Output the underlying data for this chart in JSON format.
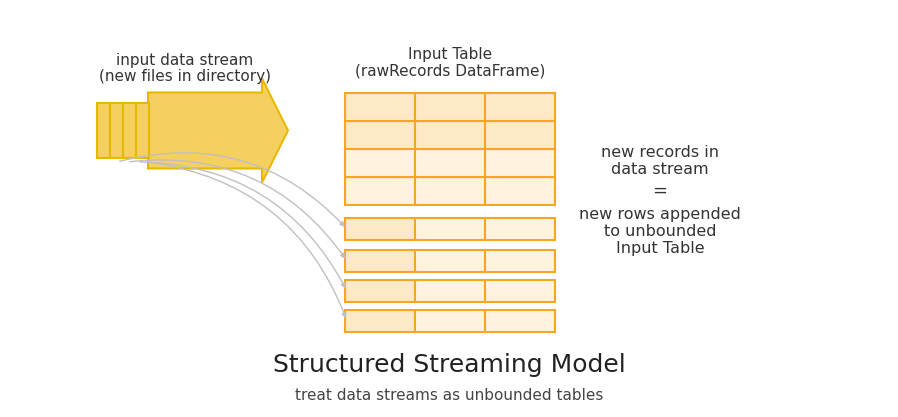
{
  "bg_color": "#ffffff",
  "title_main": "Structured Streaming Model",
  "title_sub": "treat data streams as unbounded tables",
  "title_main_size": 18,
  "title_sub_size": 11,
  "input_label_line1": "input data stream",
  "input_label_line2": "(new files in directory)",
  "table_label_line1": "Input Table",
  "table_label_line2": "(rawRecords DataFrame)",
  "right_text_1": "new records in",
  "right_text_2": "data stream",
  "right_text_eq": "=",
  "right_text_3": "new rows appended",
  "right_text_4": "to unbounded",
  "right_text_5": "Input Table",
  "cell_fill": "#fff3e0",
  "cell_fill_top": "#fde8c8",
  "cell_edge": "#f5a623",
  "arrow_color": "#f5d060",
  "arrow_edge": "#e6b800",
  "curve_color": "#c0c0c0",
  "file_color": "#f5d060",
  "file_edge": "#e6b800",
  "label_color": "#333333",
  "title_color": "#222222",
  "sub_color": "#444444",
  "fig_w": 8.98,
  "fig_h": 4.17,
  "dpi": 100
}
